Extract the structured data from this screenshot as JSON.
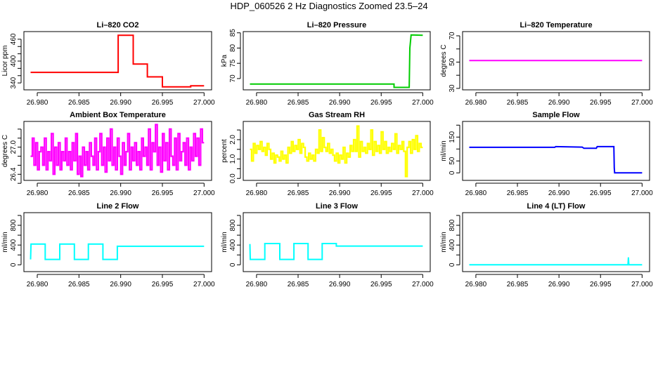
{
  "title": "HDP_060526  2 Hz Diagnostics Zoomed 23.5–24",
  "chart_data": [
    {
      "type": "line",
      "title": "Li–820 CO2",
      "ylabel": "Licor ppm",
      "color": "#ff0000",
      "xlim": [
        26.9784,
        27.0009
      ],
      "ylim": [
        321,
        481
      ],
      "xticks": [
        "26.980",
        "26.985",
        "26.990",
        "26.995",
        "27.000"
      ],
      "yticks": [
        340,
        360,
        380,
        400,
        420,
        440,
        460
      ],
      "ytick_labels": [
        "340",
        "",
        "",
        "400",
        "",
        "",
        "460"
      ],
      "points": [
        [
          26.9792,
          369
        ],
        [
          26.9897,
          369
        ],
        [
          26.9897,
          471
        ],
        [
          26.9915,
          471
        ],
        [
          26.9915,
          392
        ],
        [
          26.9932,
          392
        ],
        [
          26.9932,
          356.6
        ],
        [
          26.995,
          356.6
        ],
        [
          26.995,
          329
        ],
        [
          26.9984,
          329
        ],
        [
          26.9984,
          332
        ],
        [
          27.0,
          332
        ]
      ]
    },
    {
      "type": "line",
      "title": "Li–820 Pressure",
      "ylabel": "kPa",
      "color": "#00cc00",
      "xlim": [
        26.9784,
        27.0009
      ],
      "ylim": [
        66.3,
        85.4
      ],
      "xticks": [
        "26.980",
        "26.985",
        "26.990",
        "26.995",
        "27.000"
      ],
      "yticks": [
        70,
        75,
        80,
        85
      ],
      "ytick_labels": [
        "70",
        "75",
        "80",
        "85"
      ],
      "points": [
        [
          26.9792,
          68.2
        ],
        [
          26.99654,
          68.2
        ],
        [
          26.99654,
          67.1
        ],
        [
          26.99837,
          67.1
        ],
        [
          26.99845,
          80
        ],
        [
          26.9986,
          84.3
        ],
        [
          27.0,
          84.2
        ]
      ]
    },
    {
      "type": "line",
      "title": "Li–820 Temperature",
      "ylabel": "degrees C",
      "color": "#ff00ff",
      "xlim": [
        26.9784,
        27.0009
      ],
      "ylim": [
        28.9,
        73.2
      ],
      "xticks": [
        "26.980",
        "26.985",
        "26.990",
        "26.995",
        "27.000"
      ],
      "yticks": [
        30,
        40,
        50,
        60,
        70
      ],
      "ytick_labels": [
        "30",
        "",
        "50",
        "",
        "70"
      ],
      "points": [
        [
          26.9792,
          51.2
        ],
        [
          27.0,
          51.2
        ]
      ]
    },
    {
      "type": "line",
      "title": "Ambient Box Temperature",
      "ylabel": "degrees C",
      "color": "#ff00ff",
      "xlim": [
        26.9784,
        27.0009
      ],
      "ylim": [
        26.265,
        27.57
      ],
      "xticks": [
        "26.980",
        "26.985",
        "26.990",
        "26.995",
        "27.000"
      ],
      "yticks": [
        26.2,
        26.4,
        26.6,
        26.8,
        27.0,
        27.2,
        27.4
      ],
      "ytick_labels": [
        "",
        "26.4",
        "",
        "",
        "27.0",
        "",
        ""
      ],
      "x_range": [
        26.9792,
        27.0
      ],
      "values": [
        26.8,
        27.2,
        26.6,
        27.1,
        26.5,
        26.9,
        27.0,
        26.6,
        27.2,
        26.5,
        26.9,
        26.7,
        27.3,
        26.4,
        27.0,
        26.6,
        27.1,
        26.5,
        26.9,
        26.7,
        27.2,
        26.6,
        26.9,
        26.5,
        27.1,
        26.7,
        27.3,
        26.4,
        26.8,
        26.35,
        27.0,
        26.6,
        26.9,
        26.5,
        27.1,
        26.8,
        26.6,
        27.2,
        26.5,
        26.9,
        27.3,
        26.6,
        27.0,
        26.45,
        27.2,
        26.7,
        27.4,
        26.6,
        27.0,
        26.5,
        27.2,
        26.8,
        26.4,
        27.1,
        26.6,
        26.9,
        27.3,
        26.5,
        27.0,
        26.7,
        27.1,
        26.6,
        26.9,
        26.5,
        27.2,
        26.8,
        27.0,
        26.6,
        27.4,
        26.5,
        27.1,
        26.9,
        27.5,
        26.6,
        27.0,
        26.45,
        27.3,
        26.7,
        27.1,
        26.5,
        27.4,
        26.8,
        26.6,
        27.2,
        26.5,
        27.3,
        26.7,
        26.9,
        27.1,
        26.6,
        27.2,
        26.5,
        27.0,
        26.7,
        27.3,
        26.8,
        27.2,
        26.6,
        27.4,
        27.1
      ]
    },
    {
      "type": "line",
      "title": "Gas Stream RH",
      "ylabel": "percent",
      "color": "#ffff00",
      "xlim": [
        26.9784,
        27.0009
      ],
      "ylim": [
        -0.1,
        2.94
      ],
      "xticks": [
        "26.980",
        "26.985",
        "26.990",
        "26.995",
        "27.000"
      ],
      "yticks": [
        0,
        0.5,
        1.0,
        1.5,
        2.0,
        2.5
      ],
      "ytick_labels": [
        "0.0",
        "",
        "1.0",
        "",
        "2.0",
        ""
      ],
      "x_range": [
        26.9792,
        27.0
      ],
      "values": [
        1.5,
        0.9,
        1.8,
        1.3,
        1.7,
        1.5,
        1.9,
        1.4,
        1.6,
        1.2,
        1.8,
        1.5,
        1.0,
        1.3,
        0.8,
        1.2,
        1.1,
        0.9,
        1.4,
        1.0,
        1.2,
        0.8,
        1.6,
        1.3,
        1.9,
        1.4,
        1.7,
        1.5,
        2.0,
        1.3,
        1.8,
        1.6,
        1.1,
        0.9,
        1.3,
        1.0,
        1.2,
        0.9,
        1.5,
        1.3,
        2.5,
        1.4,
        2.1,
        1.6,
        1.4,
        1.8,
        1.3,
        1.5,
        1.2,
        0.9,
        1.3,
        0.8,
        1.2,
        1.0,
        1.6,
        0.8,
        1.3,
        1.1,
        1.7,
        1.4,
        2.0,
        1.4,
        2.7,
        1.1,
        1.9,
        1.4,
        1.6,
        1.3,
        1.8,
        1.5,
        2.5,
        1.2,
        1.9,
        1.4,
        1.7,
        1.3,
        2.4,
        1.5,
        1.9,
        1.3,
        1.6,
        1.4,
        1.8,
        1.5,
        2.3,
        1.3,
        1.7,
        1.5,
        1.9,
        1.4,
        0.1,
        1.6,
        1.9,
        1.3,
        2.0,
        1.5,
        2.2,
        1.4,
        1.8,
        1.6
      ]
    },
    {
      "type": "line",
      "title": "Sample Flow",
      "ylabel": "ml/min",
      "color": "#0000ff",
      "xlim": [
        26.9784,
        27.0009
      ],
      "ylim": [
        -31.5,
        215.6
      ],
      "xticks": [
        "26.980",
        "26.985",
        "26.990",
        "26.995",
        "27.000"
      ],
      "yticks": [
        0,
        50,
        100,
        150,
        200
      ],
      "ytick_labels": [
        "0",
        "50",
        "",
        "150",
        ""
      ],
      "points": [
        [
          26.9792,
          107
        ],
        [
          26.9895,
          107
        ],
        [
          26.9896,
          110
        ],
        [
          26.9928,
          108
        ],
        [
          26.993,
          103
        ],
        [
          26.9945,
          103
        ],
        [
          26.9946,
          110
        ],
        [
          26.9966,
          110
        ],
        [
          26.99665,
          20
        ],
        [
          26.9967,
          0
        ],
        [
          27.0,
          0
        ]
      ]
    },
    {
      "type": "line",
      "title": "Line 2 Flow",
      "ylabel": "ml/min",
      "color": "#00ffff",
      "xlim": [
        26.9784,
        27.0009
      ],
      "ylim": [
        -138,
        1056
      ],
      "xticks": [
        "26.980",
        "26.985",
        "26.990",
        "26.995",
        "27.000"
      ],
      "yticks": [
        0,
        200,
        400,
        600,
        800,
        1000
      ],
      "ytick_labels": [
        "0",
        "",
        "400",
        "",
        "800",
        ""
      ],
      "points": [
        [
          26.9792,
          110
        ],
        [
          26.97925,
          420
        ],
        [
          26.98095,
          420
        ],
        [
          26.98095,
          110
        ],
        [
          26.9827,
          110
        ],
        [
          26.9827,
          420
        ],
        [
          26.98445,
          420
        ],
        [
          26.98445,
          110
        ],
        [
          26.98613,
          110
        ],
        [
          26.98613,
          420
        ],
        [
          26.98787,
          420
        ],
        [
          26.98787,
          110
        ],
        [
          26.9896,
          110
        ],
        [
          26.9896,
          375
        ],
        [
          27.0,
          375
        ]
      ]
    },
    {
      "type": "line",
      "title": "Line 3 Flow",
      "ylabel": "ml/min",
      "color": "#00ffff",
      "xlim": [
        26.9784,
        27.0009
      ],
      "ylim": [
        -138,
        1056
      ],
      "xticks": [
        "26.980",
        "26.985",
        "26.990",
        "26.995",
        "27.000"
      ],
      "yticks": [
        0,
        200,
        400,
        600,
        800,
        1000
      ],
      "ytick_labels": [
        "0",
        "",
        "400",
        "",
        "800",
        ""
      ],
      "points": [
        [
          26.9792,
          420
        ],
        [
          26.97925,
          110
        ],
        [
          26.981,
          110
        ],
        [
          26.981,
          430
        ],
        [
          26.9828,
          430
        ],
        [
          26.9828,
          110
        ],
        [
          26.9845,
          110
        ],
        [
          26.9845,
          430
        ],
        [
          26.9862,
          430
        ],
        [
          26.9862,
          110
        ],
        [
          26.9879,
          110
        ],
        [
          26.9879,
          430
        ],
        [
          26.9896,
          430
        ],
        [
          26.9896,
          380
        ],
        [
          27.0,
          380
        ]
      ]
    },
    {
      "type": "line",
      "title": "Line 4 (LT) Flow",
      "ylabel": "ml/min",
      "color": "#00ffff",
      "xlim": [
        26.9784,
        27.0009
      ],
      "ylim": [
        -138,
        1056
      ],
      "xticks": [
        "26.980",
        "26.985",
        "26.990",
        "26.995",
        "27.000"
      ],
      "yticks": [
        0,
        200,
        400,
        600,
        800,
        1000
      ],
      "ytick_labels": [
        "0",
        "",
        "400",
        "",
        "800",
        ""
      ],
      "points": [
        [
          26.9792,
          0
        ],
        [
          26.9983,
          0
        ],
        [
          26.99835,
          150
        ],
        [
          26.9984,
          20
        ],
        [
          26.99845,
          0
        ],
        [
          27.0,
          0
        ]
      ]
    }
  ]
}
